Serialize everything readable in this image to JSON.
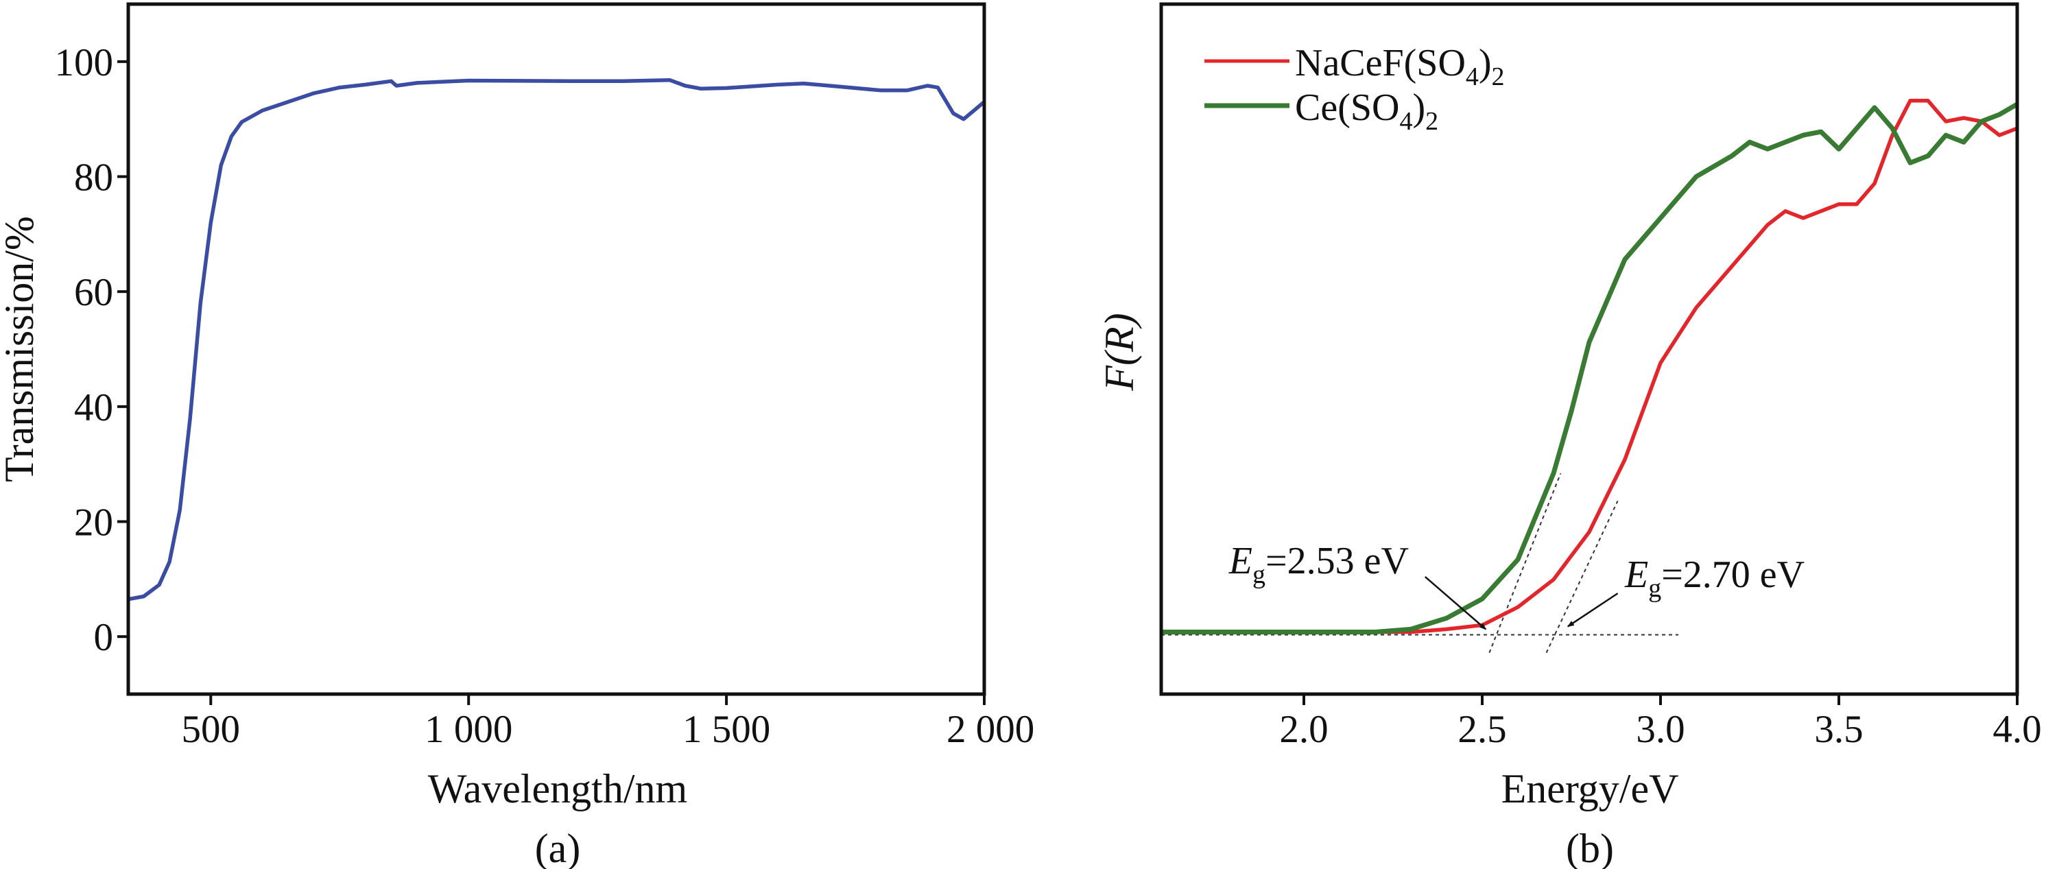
{
  "chart_data": [
    {
      "type": "line",
      "panel_label": "(a)",
      "xlabel": "Wavelength/nm",
      "ylabel": "Transmission/%",
      "xlim": [
        340,
        2000
      ],
      "ylim": [
        -10,
        110
      ],
      "grid": false,
      "x_ticks": [
        500,
        1000,
        1500,
        2000
      ],
      "x_tick_labels": [
        "500",
        "1 000",
        "1 500",
        "2 000"
      ],
      "y_ticks": [
        0,
        20,
        40,
        60,
        80,
        100
      ],
      "y_tick_labels": [
        "0",
        "20",
        "40",
        "60",
        "80",
        "100"
      ],
      "series": [
        {
          "color": "#3b4ca3",
          "x": [
            340,
            370,
            400,
            420,
            440,
            460,
            480,
            500,
            520,
            540,
            560,
            600,
            650,
            700,
            750,
            800,
            850,
            860,
            900,
            1000,
            1200,
            1300,
            1390,
            1420,
            1450,
            1500,
            1600,
            1650,
            1700,
            1800,
            1850,
            1890,
            1910,
            1940,
            1960,
            1980,
            2000
          ],
          "y": [
            6.5,
            7,
            9,
            13,
            22,
            38,
            58,
            72,
            82,
            87,
            89.5,
            91.5,
            93,
            94.5,
            95.5,
            96,
            96.6,
            95.8,
            96.3,
            96.7,
            96.6,
            96.6,
            96.8,
            95.8,
            95.3,
            95.4,
            96,
            96.2,
            95.8,
            95,
            95,
            95.8,
            95.5,
            91,
            90,
            91.5,
            93
          ]
        }
      ]
    },
    {
      "type": "line",
      "panel_label": "(b)",
      "xlabel": "Energy/eV",
      "ylabel": "F(R)",
      "xlim": [
        1.6,
        4.0
      ],
      "ylim": [
        0,
        1
      ],
      "grid": false,
      "legend_position": "top-left",
      "x_ticks": [
        2.0,
        2.5,
        3.0,
        3.5,
        4.0
      ],
      "x_tick_labels": [
        "2.0",
        "2.5",
        "3.0",
        "3.5",
        "4.0"
      ],
      "series": [
        {
          "name": "NaCeF(SO4)2",
          "legend": {
            "main": "NaCeF(SO",
            "sub1": "4",
            "close": ")",
            "sub2": "2"
          },
          "color": "#e3262b",
          "x": [
            1.6,
            2.0,
            2.3,
            2.4,
            2.5,
            2.6,
            2.7,
            2.8,
            2.9,
            3.0,
            3.1,
            3.2,
            3.3,
            3.35,
            3.4,
            3.45,
            3.5,
            3.55,
            3.6,
            3.65,
            3.7,
            3.75,
            3.8,
            3.85,
            3.9,
            3.95,
            4.0
          ],
          "y": [
            0.09,
            0.09,
            0.09,
            0.094,
            0.1,
            0.126,
            0.166,
            0.235,
            0.34,
            0.48,
            0.56,
            0.62,
            0.68,
            0.7,
            0.69,
            0.7,
            0.71,
            0.71,
            0.74,
            0.81,
            0.86,
            0.86,
            0.83,
            0.835,
            0.83,
            0.81,
            0.82
          ]
        },
        {
          "name": "Ce(SO4)2",
          "legend": {
            "main": "Ce(SO",
            "sub1": "4",
            "close": ")",
            "sub2": "2"
          },
          "color": "#3a7b34",
          "x": [
            1.6,
            2.0,
            2.2,
            2.3,
            2.4,
            2.5,
            2.6,
            2.7,
            2.75,
            2.8,
            2.9,
            3.0,
            3.1,
            3.2,
            3.25,
            3.3,
            3.4,
            3.45,
            3.5,
            3.55,
            3.6,
            3.65,
            3.7,
            3.75,
            3.8,
            3.85,
            3.9,
            3.95,
            4.0
          ],
          "y": [
            0.09,
            0.09,
            0.09,
            0.094,
            0.11,
            0.138,
            0.195,
            0.32,
            0.41,
            0.51,
            0.63,
            0.69,
            0.75,
            0.78,
            0.8,
            0.79,
            0.81,
            0.815,
            0.79,
            0.82,
            0.85,
            0.82,
            0.77,
            0.78,
            0.81,
            0.8,
            0.83,
            0.84,
            0.855
          ]
        }
      ],
      "guide_lines": [
        {
          "style": "dotted",
          "x": [
            1.6,
            3.05
          ],
          "y": [
            0.086,
            0.086
          ]
        },
        {
          "style": "dotted",
          "x": [
            2.52,
            2.72
          ],
          "y": [
            0.06,
            0.32
          ]
        },
        {
          "style": "dotted",
          "x": [
            2.68,
            2.88
          ],
          "y": [
            0.06,
            0.28
          ]
        }
      ],
      "annotations": [
        {
          "symbol": "E",
          "subscript": "g",
          "text": "=2.53 eV",
          "x": 1.79,
          "y": 0.175,
          "arrow_from": [
            2.34,
            0.17
          ],
          "arrow_to": [
            2.51,
            0.094
          ]
        },
        {
          "symbol": "E",
          "subscript": "g",
          "text": "=2.70 eV",
          "x": 2.9,
          "y": 0.155,
          "arrow_from": [
            2.88,
            0.146
          ],
          "arrow_to": [
            2.74,
            0.098
          ]
        }
      ]
    }
  ]
}
